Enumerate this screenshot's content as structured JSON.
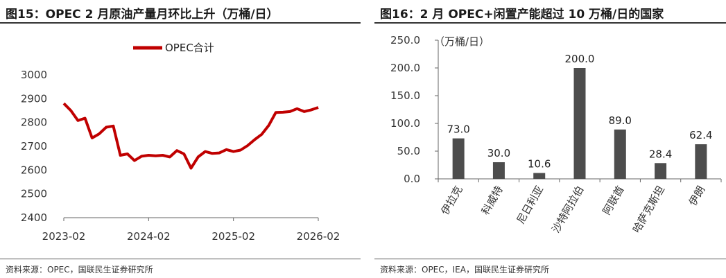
{
  "left": {
    "title": "图15：OPEC 2 月原油产量月环比上升（万桶/日）",
    "source": "资料来源：OPEC，国联民生证券研究所",
    "chart_data": {
      "type": "line",
      "ylim": [
        2400,
        3000
      ],
      "yticks": [
        "2400",
        "2500",
        "2600",
        "2700",
        "2800",
        "2900",
        "3000"
      ],
      "xticks": [
        {
          "label": "2023-02",
          "index": 0
        },
        {
          "label": "2024-02",
          "index": 12
        },
        {
          "label": "2025-02",
          "index": 24
        },
        {
          "label": "2026-02",
          "index": 36
        }
      ],
      "legend": {
        "position": "top",
        "entries": [
          "OPEC合计"
        ]
      },
      "series": [
        {
          "name": "OPEC合计",
          "color": "#c00000",
          "values": [
            2880,
            2850,
            2808,
            2818,
            2735,
            2752,
            2780,
            2785,
            2662,
            2668,
            2640,
            2658,
            2662,
            2660,
            2662,
            2655,
            2682,
            2668,
            2608,
            2655,
            2678,
            2670,
            2672,
            2686,
            2678,
            2684,
            2703,
            2728,
            2750,
            2788,
            2842,
            2843,
            2846,
            2858,
            2846,
            2853,
            2863
          ]
        }
      ]
    }
  },
  "right": {
    "title": "图16：2 月 OPEC+闲置产能超过 10 万桶/日的国家",
    "source": "资料来源：OPEC，IEA，国联民生证券研究所",
    "chart_data": {
      "type": "bar",
      "unit_label": "（万桶/日）",
      "ylim": [
        0,
        250
      ],
      "yticks": [
        "0.0",
        "50.0",
        "100.0",
        "150.0",
        "200.0",
        "250.0"
      ],
      "categories": [
        "伊拉克",
        "科威特",
        "尼日利亚",
        "沙特阿拉伯",
        "阿联酋",
        "哈萨克斯坦",
        "伊朗"
      ],
      "values": [
        73.0,
        30.0,
        10.6,
        200.0,
        89.0,
        28.4,
        62.4
      ],
      "data_labels": [
        "73.0",
        "30.0",
        "10.6",
        "200.0",
        "89.0",
        "28.4",
        "62.4"
      ],
      "bar_color": "#4d4d4d"
    }
  }
}
